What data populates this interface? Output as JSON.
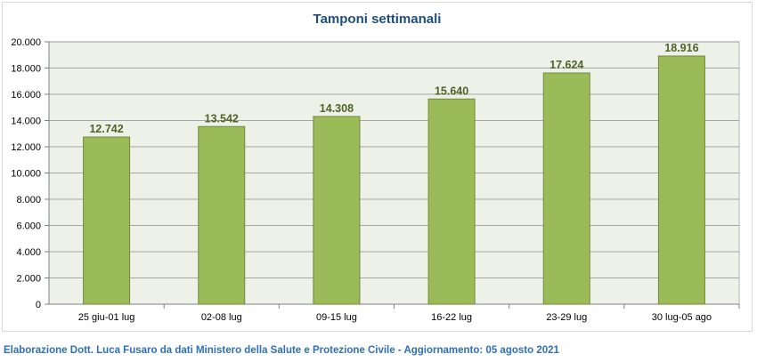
{
  "chart_data": {
    "type": "bar",
    "title": "Tamponi settimanali",
    "categories": [
      "25 giu-01 lug",
      "02-08 lug",
      "09-15 lug",
      "16-22 lug",
      "23-29 lug",
      "30 lug-05 ago"
    ],
    "values": [
      12742,
      13542,
      14308,
      15640,
      17624,
      18916
    ],
    "value_labels": [
      "12.742",
      "13.542",
      "14.308",
      "15.640",
      "17.624",
      "18.916"
    ],
    "ylim": [
      0,
      20000
    ],
    "yticks": [
      0,
      2000,
      4000,
      6000,
      8000,
      10000,
      12000,
      14000,
      16000,
      18000,
      20000
    ],
    "ytick_labels": [
      "0",
      "2.000",
      "4.000",
      "6.000",
      "8.000",
      "10.000",
      "12.000",
      "14.000",
      "16.000",
      "18.000",
      "20.000"
    ],
    "xlabel": "",
    "ylabel": "",
    "grid": true,
    "colors": {
      "bar": "#9bbb59",
      "bar_border": "#71893f",
      "plot_bg": "#eef1e8",
      "label": "#4f6228",
      "title": "#1f4e79",
      "axis_text": "#000000"
    }
  },
  "footer": {
    "text": "Elaborazione Dott. Luca Fusaro da dati Ministero della Salute e Protezione Civile - Aggiornamento: 05 agosto 2021",
    "color": "#2f6fb7"
  }
}
